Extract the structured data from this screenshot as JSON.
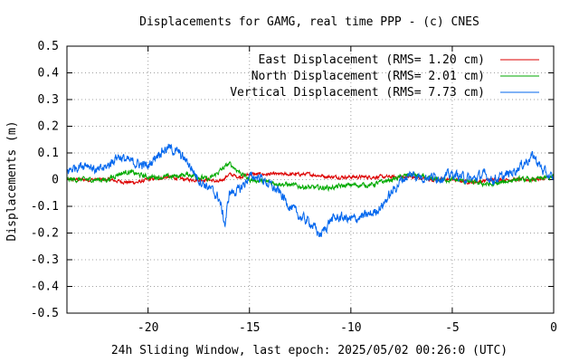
{
  "chart_data": {
    "type": "line",
    "title": "Displacements for GAMG, real time PPP - (c) CNES",
    "xlabel": "24h Sliding Window, last epoch: 2025/05/02 00:26:0 (UTC)",
    "ylabel": "Displacements (m)",
    "xlim": [
      -24,
      0
    ],
    "ylim": [
      -0.5,
      0.5
    ],
    "xticks": [
      -20,
      -15,
      -10,
      -5,
      0
    ],
    "yticks": [
      -0.5,
      -0.4,
      -0.3,
      -0.2,
      -0.1,
      0,
      0.1,
      0.2,
      0.3,
      0.4,
      0.5
    ],
    "grid": true,
    "legend_position": "top-right",
    "series": [
      {
        "name": "East Displacement (RMS= 1.20 cm)",
        "color": "#dd0000",
        "x": [
          -24,
          -23,
          -22,
          -21,
          -20.5,
          -20,
          -19,
          -18,
          -17,
          -16.5,
          -16,
          -15.5,
          -15,
          -14,
          -13,
          -12,
          -11,
          -10,
          -9,
          -8,
          -7,
          -6,
          -5,
          -4,
          -3,
          -2,
          -1,
          0
        ],
        "y": [
          0.0,
          0.0,
          0.0,
          -0.01,
          -0.01,
          0.0,
          0.01,
          0.0,
          0.0,
          -0.01,
          0.02,
          0.01,
          0.02,
          0.02,
          0.02,
          0.02,
          0.01,
          0.01,
          0.01,
          0.01,
          0.01,
          0.0,
          0.0,
          -0.01,
          0.0,
          0.0,
          0.0,
          0.01
        ]
      },
      {
        "name": "North Displacement (RMS= 2.01 cm)",
        "color": "#00aa00",
        "x": [
          -24,
          -23,
          -22,
          -21.5,
          -21,
          -20,
          -19,
          -18,
          -17,
          -16,
          -15.5,
          -15,
          -14,
          -13,
          -12,
          -11,
          -10,
          -9,
          -8,
          -7,
          -6,
          -5,
          -4,
          -3,
          -2,
          -1,
          0
        ],
        "y": [
          0.0,
          0.0,
          0.0,
          0.02,
          0.03,
          0.01,
          0.01,
          0.02,
          0.0,
          0.06,
          0.03,
          0.0,
          -0.01,
          -0.02,
          -0.03,
          -0.03,
          -0.02,
          -0.02,
          0.0,
          0.02,
          0.0,
          0.0,
          -0.01,
          -0.02,
          0.0,
          0.0,
          0.01
        ]
      },
      {
        "name": "Vertical Displacement (RMS= 7.73 cm)",
        "color": "#0066ee",
        "x": [
          -24,
          -23.5,
          -23,
          -22.5,
          -22,
          -21.5,
          -21,
          -20.5,
          -20,
          -19.5,
          -19,
          -18.5,
          -18,
          -17.5,
          -17,
          -16.5,
          -16.2,
          -16,
          -15.5,
          -15,
          -14.5,
          -14,
          -13.5,
          -13,
          -12.5,
          -12,
          -11.5,
          -11,
          -10.5,
          -10,
          -9.5,
          -9,
          -8.5,
          -8,
          -7.5,
          -7,
          -6.5,
          -6,
          -5.5,
          -5,
          -4.5,
          -4,
          -3.5,
          -3,
          -2.5,
          -2,
          -1.5,
          -1,
          -0.5,
          0
        ],
        "y": [
          0.03,
          0.05,
          0.06,
          0.03,
          0.05,
          0.09,
          0.07,
          0.06,
          0.05,
          0.1,
          0.12,
          0.1,
          0.06,
          0.0,
          -0.03,
          -0.07,
          -0.17,
          -0.05,
          -0.04,
          0.01,
          0.01,
          -0.02,
          -0.05,
          -0.1,
          -0.14,
          -0.16,
          -0.21,
          -0.15,
          -0.14,
          -0.15,
          -0.14,
          -0.13,
          -0.1,
          -0.05,
          0.0,
          0.02,
          0.01,
          0.01,
          0.01,
          0.02,
          0.01,
          0.0,
          0.02,
          0.0,
          0.01,
          0.03,
          0.06,
          0.09,
          0.03,
          0.0
        ]
      }
    ]
  }
}
